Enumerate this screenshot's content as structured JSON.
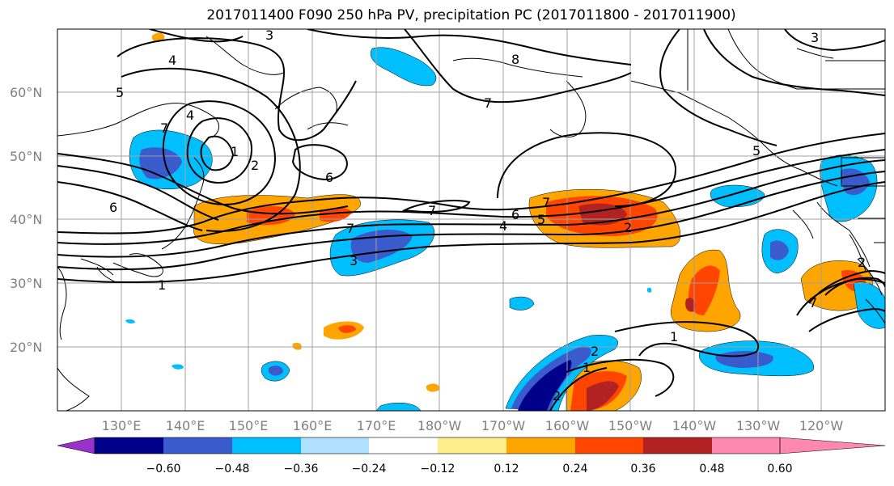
{
  "title": "2017011400 F090 250 hPa PV, precipitation PC (2017011800 - 2017011900)",
  "lat_labels": [
    "60°N",
    "50°N",
    "40°N",
    "30°N",
    "20°N"
  ],
  "lon_labels": [
    "130°E",
    "140°E",
    "150°E",
    "160°E",
    "170°E",
    "180°W",
    "170°W",
    "160°W",
    "150°W",
    "140°W",
    "130°W",
    "120°W"
  ],
  "colorbar": {
    "ticks": [
      "−0.60",
      "−0.48",
      "−0.36",
      "−0.24",
      "−0.12",
      "0.12",
      "0.24",
      "0.36",
      "0.48",
      "0.60"
    ],
    "colors": [
      "#9932cc",
      "#00008b",
      "#3a5bcc",
      "#00bfff",
      "#b0e0ff",
      "#ffffff",
      "#ffec8b",
      "#ffa500",
      "#ff4500",
      "#b22222",
      "#ff88b0"
    ]
  },
  "pv_contour_labels": [
    "3",
    "4",
    "5",
    "4",
    "7",
    "1",
    "2",
    "6",
    "6",
    "7",
    "7",
    "3",
    "1",
    "7",
    "6",
    "4",
    "5",
    "2",
    "8",
    "7",
    "5",
    "3",
    "1",
    "2",
    "1",
    "2",
    "7",
    "2"
  ],
  "colors": {
    "grid": "#a0a0a0",
    "coast": "#000000",
    "pv_contour": "#000000"
  }
}
